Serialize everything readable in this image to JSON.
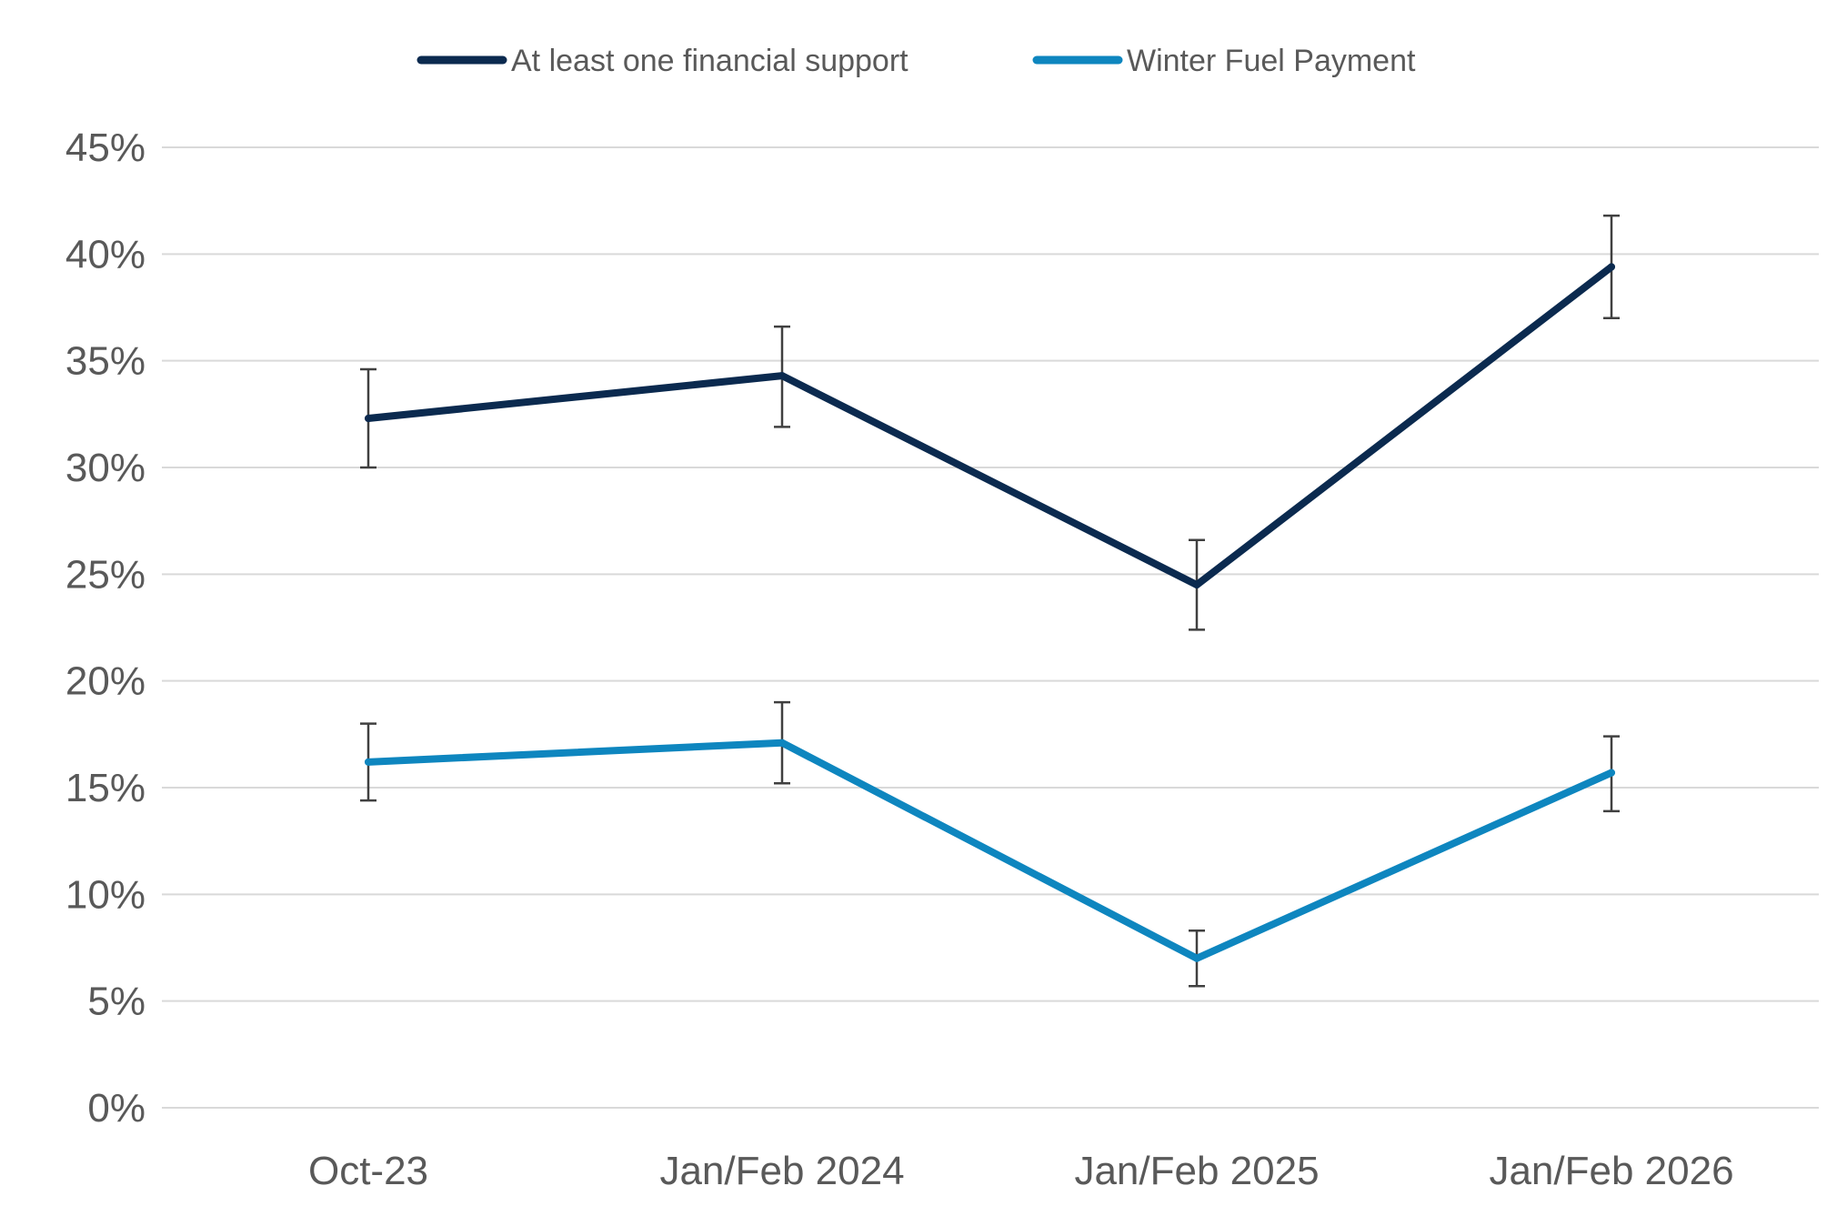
{
  "chart_data": {
    "type": "line",
    "title": "",
    "xlabel": "",
    "ylabel": "",
    "categories": [
      "Oct-23",
      "Jan/Feb 2024",
      "Jan/Feb 2025",
      "Jan/Feb 2026"
    ],
    "ylim": [
      0,
      45
    ],
    "yticks": [
      0,
      5,
      10,
      15,
      20,
      25,
      30,
      35,
      40,
      45
    ],
    "ytick_labels": [
      "0%",
      "5%",
      "10%",
      "15%",
      "20%",
      "25%",
      "30%",
      "35%",
      "40%",
      "45%"
    ],
    "grid": "horizontal",
    "legend_position": "top-center",
    "series": [
      {
        "name": "At least one financial support",
        "color": "#0b2a4f",
        "values": [
          32.3,
          34.3,
          24.5,
          39.4
        ],
        "error_low": [
          30.0,
          31.9,
          22.4,
          37.0
        ],
        "error_high": [
          34.6,
          36.6,
          26.6,
          41.8
        ]
      },
      {
        "name": "Winter Fuel Payment",
        "color": "#0e86bf",
        "values": [
          16.2,
          17.1,
          7.0,
          15.7
        ],
        "error_low": [
          14.4,
          15.2,
          5.7,
          13.9
        ],
        "error_high": [
          18.0,
          19.0,
          8.3,
          17.4
        ]
      }
    ]
  }
}
